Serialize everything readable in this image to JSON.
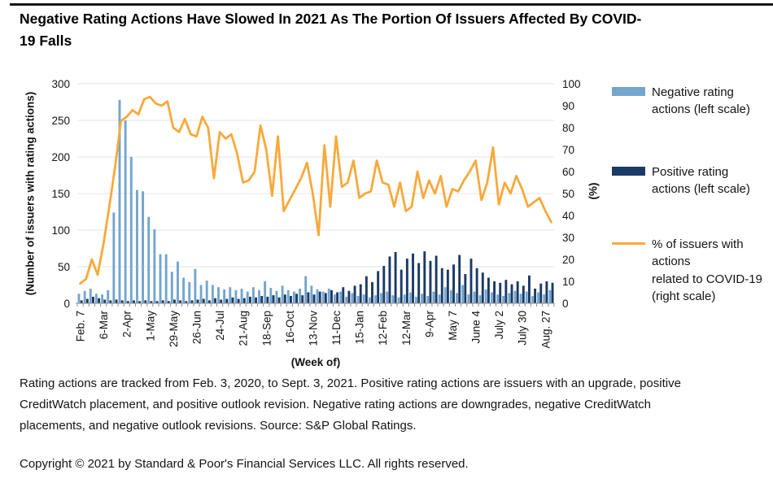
{
  "title": "Negative Rating Actions Have Slowed In 2021 As The Portion Of Issuers Affected By COVID-19 Falls",
  "footnote": "Rating actions are tracked from Feb. 3, 2020, to Sept. 3, 2021. Positive rating actions are issuers with an upgrade, positive CreditWatch placement, and positive outlook revision. Negative rating actions are downgrades, negative CreditWatch placements, and negative outlook revisions. Source: S&P Global Ratings.",
  "copyright": "Copyright © 2021 by Standard & Poor's Financial Services LLC. All rights reserved.",
  "legend": {
    "items": [
      {
        "label": "Negative rating actions (left scale)",
        "swatch": "bar",
        "color": "#74a5cd"
      },
      {
        "label": "Positive rating actions (left scale)",
        "swatch": "bar",
        "color": "#1b3a66"
      },
      {
        "label": "% of issuers with\nactions\nrelated to COVID-19 (right scale)",
        "swatch": "line",
        "color": "#f8a93b"
      }
    ]
  },
  "chart_data": {
    "type": "bar",
    "subtype": "clustered-bars-with-line",
    "xlabel": "(Week of)",
    "ylabel_left": "(Number of issuers with rating actions)",
    "ylabel_right": "(%)",
    "ylim_left": [
      0,
      300
    ],
    "ylim_right": [
      0,
      100
    ],
    "yticks_left": [
      0,
      50,
      100,
      150,
      200,
      250,
      300
    ],
    "yticks_right": [
      0,
      10,
      20,
      30,
      40,
      50,
      60,
      70,
      80,
      90,
      100
    ],
    "grid": true,
    "legend_position": "right",
    "weeks": 82,
    "x_tick_every": 4,
    "x_tick_labels": [
      "Feb. 7",
      "6-Mar",
      "2-Apr",
      "1-May",
      "29-May",
      "26-Jun",
      "24-Jul",
      "21-Aug",
      "18-Sep",
      "16-Oct",
      "13-Nov",
      "11-Dec",
      "15-Jan",
      "12-Feb",
      "12-Mar",
      "9-Apr",
      "May 7",
      "June 4",
      "July 2",
      "July 30",
      "Aug. 27"
    ],
    "bar_series": [
      {
        "name": "Negative rating actions (left scale)",
        "axis": "left",
        "color": "#74a5cd",
        "values": [
          13,
          17,
          20,
          13,
          12,
          18,
          124,
          278,
          250,
          200,
          155,
          153,
          118,
          101,
          67,
          67,
          43,
          57,
          35,
          29,
          47,
          25,
          31,
          25,
          22,
          19,
          22,
          18,
          20,
          16,
          22,
          18,
          30,
          21,
          17,
          24,
          18,
          16,
          20,
          37,
          24,
          19,
          16,
          20,
          12,
          16,
          9,
          14,
          10,
          12,
          8,
          11,
          14,
          16,
          11,
          8,
          12,
          15,
          9,
          13,
          10,
          16,
          12,
          22,
          18,
          14,
          25,
          12,
          16,
          11,
          19,
          15,
          12,
          10,
          14,
          17,
          13,
          16,
          10,
          15,
          12,
          18
        ]
      },
      {
        "name": "Positive rating actions (left scale)",
        "axis": "left",
        "color": "#1b3a66",
        "values": [
          4,
          6,
          9,
          7,
          5,
          4,
          5,
          4,
          3,
          4,
          3,
          4,
          3,
          3,
          4,
          3,
          5,
          4,
          3,
          4,
          5,
          6,
          4,
          7,
          5,
          6,
          8,
          6,
          7,
          9,
          8,
          10,
          9,
          11,
          8,
          12,
          10,
          13,
          11,
          15,
          12,
          16,
          14,
          18,
          15,
          22,
          17,
          24,
          26,
          37,
          29,
          44,
          51,
          64,
          70,
          46,
          61,
          68,
          55,
          71,
          58,
          65,
          48,
          46,
          53,
          66,
          40,
          61,
          48,
          42,
          35,
          30,
          28,
          32,
          26,
          30,
          24,
          38,
          20,
          27,
          30,
          28
        ]
      }
    ],
    "line_series": {
      "name": "% of issuers with actions related to COVID-19 (right scale)",
      "axis": "right",
      "color": "#f8a93b",
      "values": [
        9,
        11,
        20,
        13,
        27,
        44,
        62,
        83,
        85,
        88,
        86,
        93,
        94,
        91,
        90,
        92,
        80,
        78,
        84,
        77,
        76,
        85,
        80,
        57,
        78,
        75,
        77,
        68,
        55,
        56,
        60,
        81,
        70,
        49,
        76,
        42,
        47,
        52,
        57,
        64,
        50,
        31,
        72,
        44,
        76,
        53,
        55,
        65,
        48,
        50,
        51,
        65,
        55,
        54,
        44,
        55,
        42,
        44,
        60,
        48,
        56,
        50,
        58,
        44,
        52,
        51,
        56,
        60,
        65,
        47,
        55,
        71,
        45,
        55,
        50,
        58,
        52,
        44,
        46,
        48,
        42,
        37
      ]
    }
  }
}
